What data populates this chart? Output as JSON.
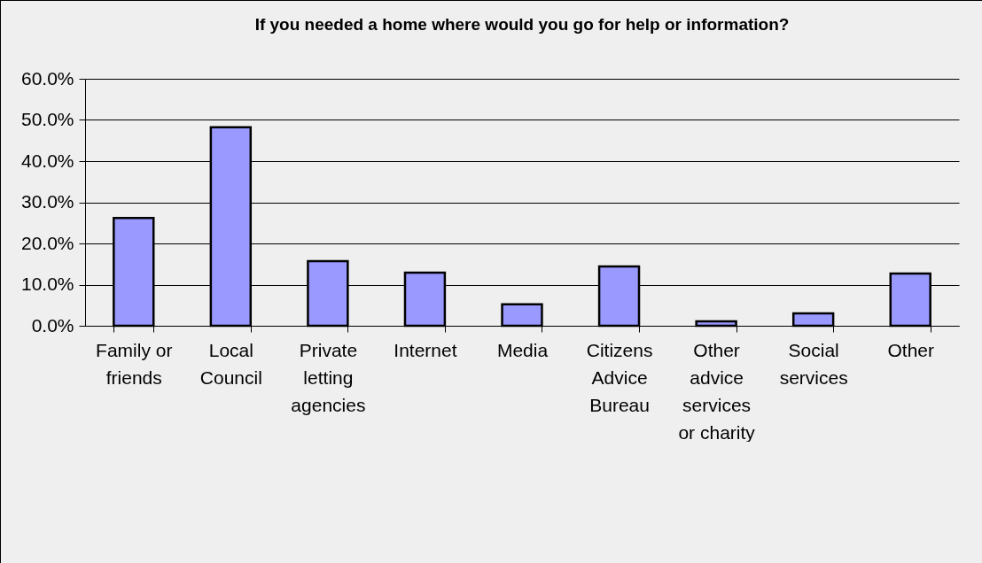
{
  "chart_data": {
    "type": "bar",
    "title": "If you needed a home where would you go for help or information?",
    "categories": [
      "Family or friends",
      "Local Council",
      "Private letting agencies",
      "Internet",
      "Media",
      "Citizens Advice Bureau",
      "Other advice services or charity",
      "Social services",
      "Other"
    ],
    "values": [
      26.2,
      48.2,
      15.7,
      12.9,
      5.2,
      14.4,
      1.1,
      3.0,
      12.7
    ],
    "color": "#9999ff",
    "ylim": [
      0,
      60
    ],
    "yticks": [
      {
        "value": 0,
        "label": "0.0%"
      },
      {
        "value": 10,
        "label": "10.0%"
      },
      {
        "value": 20,
        "label": "20.0%"
      },
      {
        "value": 30,
        "label": "30.0%"
      },
      {
        "value": 40,
        "label": "40.0%"
      },
      {
        "value": 50,
        "label": "50.0%"
      },
      {
        "value": 60,
        "label": "60.0%"
      }
    ],
    "grid": "y"
  }
}
